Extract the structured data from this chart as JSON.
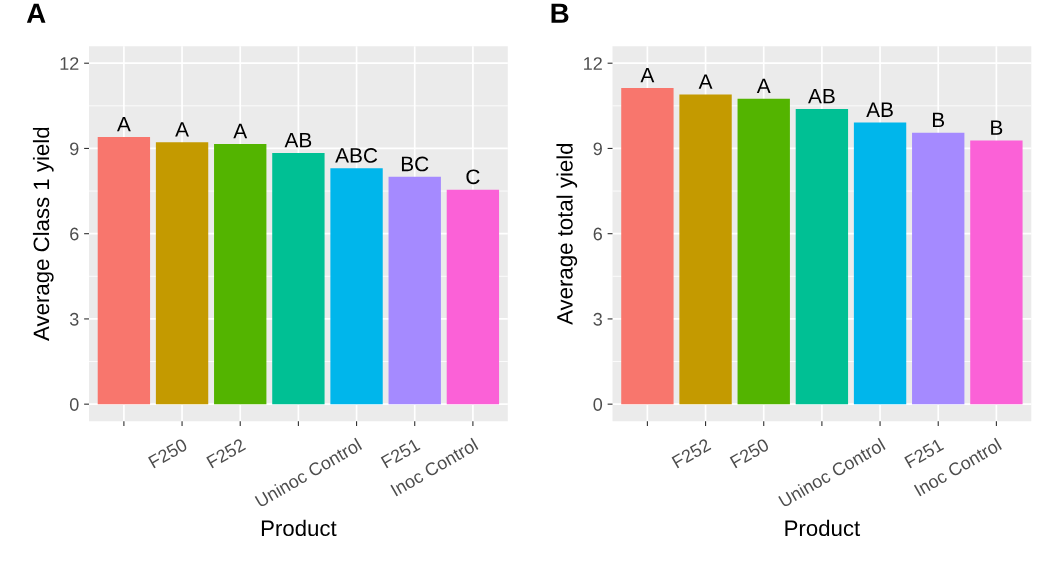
{
  "chart_data": [
    {
      "type": "bar",
      "title": "A",
      "xlabel": "Product",
      "ylabel": "Average Class 1 yield",
      "categories": [
        null,
        "F250",
        "F252",
        null,
        "Uninoc Control",
        "F251",
        "Inoc Control"
      ],
      "values": [
        9.4,
        9.22,
        9.16,
        8.84,
        8.3,
        8.0,
        7.55
      ],
      "colors": [
        "#f8766d",
        "#c49a00",
        "#53b400",
        "#00c094",
        "#00b6eb",
        "#a58aff",
        "#fb61d7"
      ],
      "value_labels": [
        "A",
        "A",
        "A",
        "AB",
        "ABC",
        "BC",
        "C"
      ],
      "ylim": [
        -0.6,
        12.6
      ],
      "yticks": [
        0,
        3,
        6,
        9,
        12
      ],
      "grid": true
    },
    {
      "type": "bar",
      "title": "B",
      "xlabel": "Product",
      "ylabel": "Average total yield",
      "categories": [
        null,
        "F252",
        "F250",
        null,
        "Uninoc Control",
        "F251",
        "Inoc Control"
      ],
      "values": [
        11.13,
        10.9,
        10.75,
        10.39,
        9.91,
        9.55,
        9.28
      ],
      "colors": [
        "#f8766d",
        "#c49a00",
        "#53b400",
        "#00c094",
        "#00b6eb",
        "#a58aff",
        "#fb61d7"
      ],
      "value_labels": [
        "A",
        "A",
        "A",
        "AB",
        "AB",
        "B",
        "B"
      ],
      "ylim": [
        -0.6,
        12.6
      ],
      "yticks": [
        0,
        3,
        6,
        9,
        12
      ],
      "grid": true
    }
  ]
}
